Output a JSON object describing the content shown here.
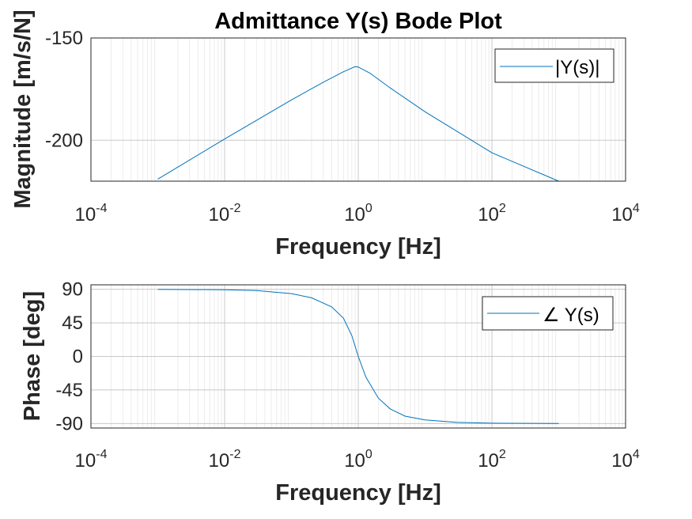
{
  "chart_data": [
    {
      "type": "line",
      "title": "Admittance Y(s) Bode Plot",
      "xlabel": "Frequency [Hz]",
      "ylabel": "Magnitude [m/s/N]",
      "xscale": "log",
      "xlim": [
        0.0001,
        10000
      ],
      "ylim": [
        -220,
        -150
      ],
      "xticks": [
        {
          "base": "10",
          "exp": "-4"
        },
        {
          "base": "10",
          "exp": "-2"
        },
        {
          "base": "10",
          "exp": "0"
        },
        {
          "base": "10",
          "exp": "2"
        },
        {
          "base": "10",
          "exp": "4"
        }
      ],
      "yticks": [
        "-150",
        "-200"
      ],
      "grid": true,
      "legend": "top-right",
      "series": [
        {
          "name": "|Y(s)|",
          "color": "#0072BD",
          "x": [
            0.001,
            0.01,
            0.1,
            0.3,
            0.6,
            0.9,
            1.0,
            1.5,
            3,
            10,
            100,
            1000
          ],
          "y": [
            -219,
            -199.4,
            -180.3,
            -171.6,
            -166.5,
            -164.0,
            -164.2,
            -167.2,
            -174.4,
            -186.1,
            -206.1,
            -220
          ]
        }
      ]
    },
    {
      "type": "line",
      "title": "",
      "xlabel": "Frequency [Hz]",
      "ylabel": "Phase [deg]",
      "xscale": "log",
      "xlim": [
        0.0001,
        10000
      ],
      "ylim": [
        -96,
        96
      ],
      "xticks": [
        {
          "base": "10",
          "exp": "-4"
        },
        {
          "base": "10",
          "exp": "-2"
        },
        {
          "base": "10",
          "exp": "0"
        },
        {
          "base": "10",
          "exp": "2"
        },
        {
          "base": "10",
          "exp": "4"
        }
      ],
      "yticks": [
        "90",
        "45",
        "0",
        "-45",
        "-90"
      ],
      "grid": true,
      "legend": "top-right",
      "series": [
        {
          "name": "∠ Y(s)",
          "color": "#0072BD",
          "x": [
            0.001,
            0.01,
            0.03,
            0.1,
            0.2,
            0.4,
            0.6,
            0.8,
            1.0,
            1.3,
            2,
            3,
            5,
            10,
            30,
            100,
            1000
          ],
          "y": [
            89.9,
            89.4,
            88.3,
            84.2,
            78.6,
            66.4,
            51.2,
            28.1,
            0,
            -27.6,
            -55.9,
            -70.3,
            -80.1,
            -85.2,
            -88.5,
            -89.5,
            -90
          ]
        }
      ]
    }
  ]
}
